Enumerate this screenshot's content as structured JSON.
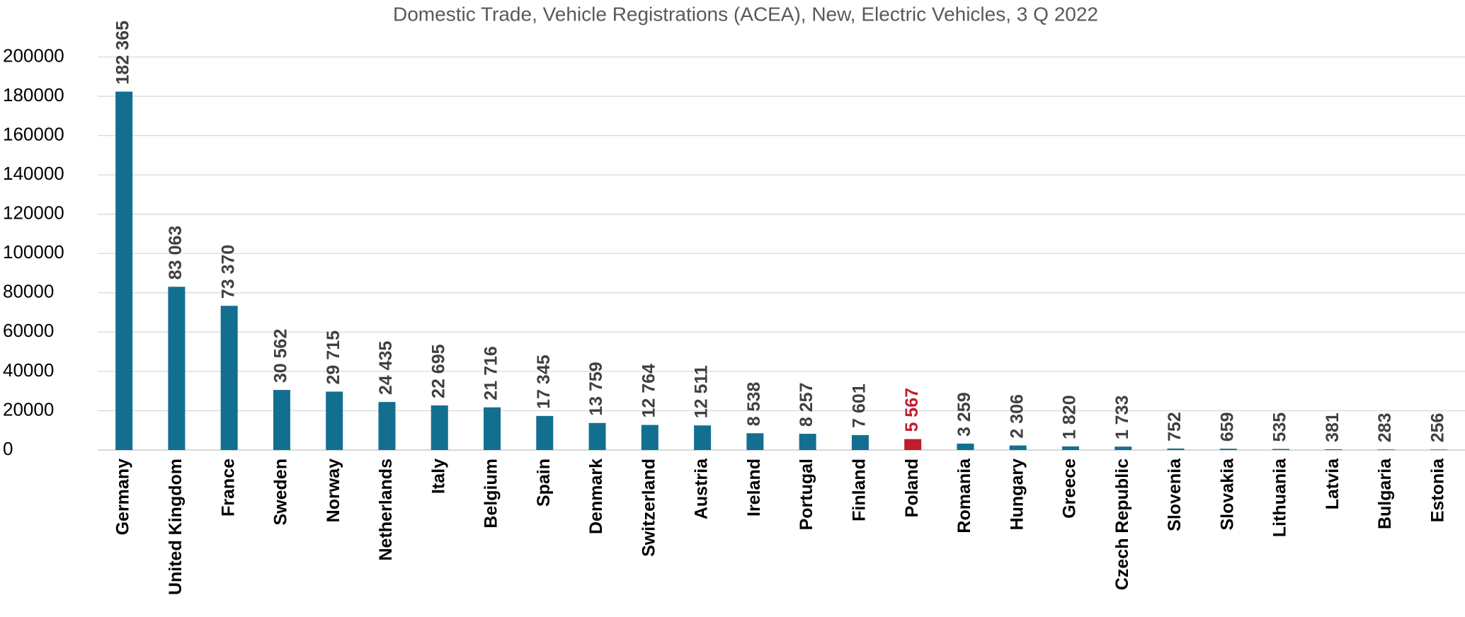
{
  "chart_data": {
    "type": "bar",
    "title": "Domestic Trade, Vehicle Registrations (ACEA), New, Electric Vehicles, 3 Q 2022",
    "categories": [
      "Germany",
      "United Kingdom",
      "France",
      "Sweden",
      "Norway",
      "Netherlands",
      "Italy",
      "Belgium",
      "Spain",
      "Denmark",
      "Switzerland",
      "Austria",
      "Ireland",
      "Portugal",
      "Finland",
      "Poland",
      "Romania",
      "Hungary",
      "Greece",
      "Czech Republic",
      "Slovenia",
      "Slovakia",
      "Lithuania",
      "Latvia",
      "Bulgaria",
      "Estonia"
    ],
    "values": [
      182365,
      83063,
      73370,
      30562,
      29715,
      24435,
      22695,
      21716,
      17345,
      13759,
      12764,
      12511,
      8538,
      8257,
      7601,
      5567,
      3259,
      2306,
      1820,
      1733,
      752,
      659,
      535,
      381,
      283,
      256
    ],
    "value_labels": [
      "182 365",
      "83 063",
      "73 370",
      "30 562",
      "29 715",
      "24 435",
      "22 695",
      "21 716",
      "17 345",
      "13 759",
      "12 764",
      "12 511",
      "8 538",
      "8 257",
      "7 601",
      "5 567",
      "3 259",
      "2 306",
      "1 820",
      "1 733",
      "752",
      "659",
      "535",
      "381",
      "283",
      "256"
    ],
    "colors": [
      "#136f8f",
      "#136f8f",
      "#136f8f",
      "#136f8f",
      "#136f8f",
      "#136f8f",
      "#136f8f",
      "#136f8f",
      "#136f8f",
      "#136f8f",
      "#136f8f",
      "#136f8f",
      "#136f8f",
      "#136f8f",
      "#136f8f",
      "#be1e2d",
      "#136f8f",
      "#136f8f",
      "#136f8f",
      "#136f8f",
      "#136f8f",
      "#136f8f",
      "#136f8f",
      "#136f8f",
      "#136f8f",
      "#136f8f"
    ],
    "ylim": [
      0,
      200000
    ],
    "yticks": [
      0,
      20000,
      40000,
      60000,
      80000,
      100000,
      120000,
      140000,
      160000,
      180000,
      200000
    ],
    "grid": true
  }
}
